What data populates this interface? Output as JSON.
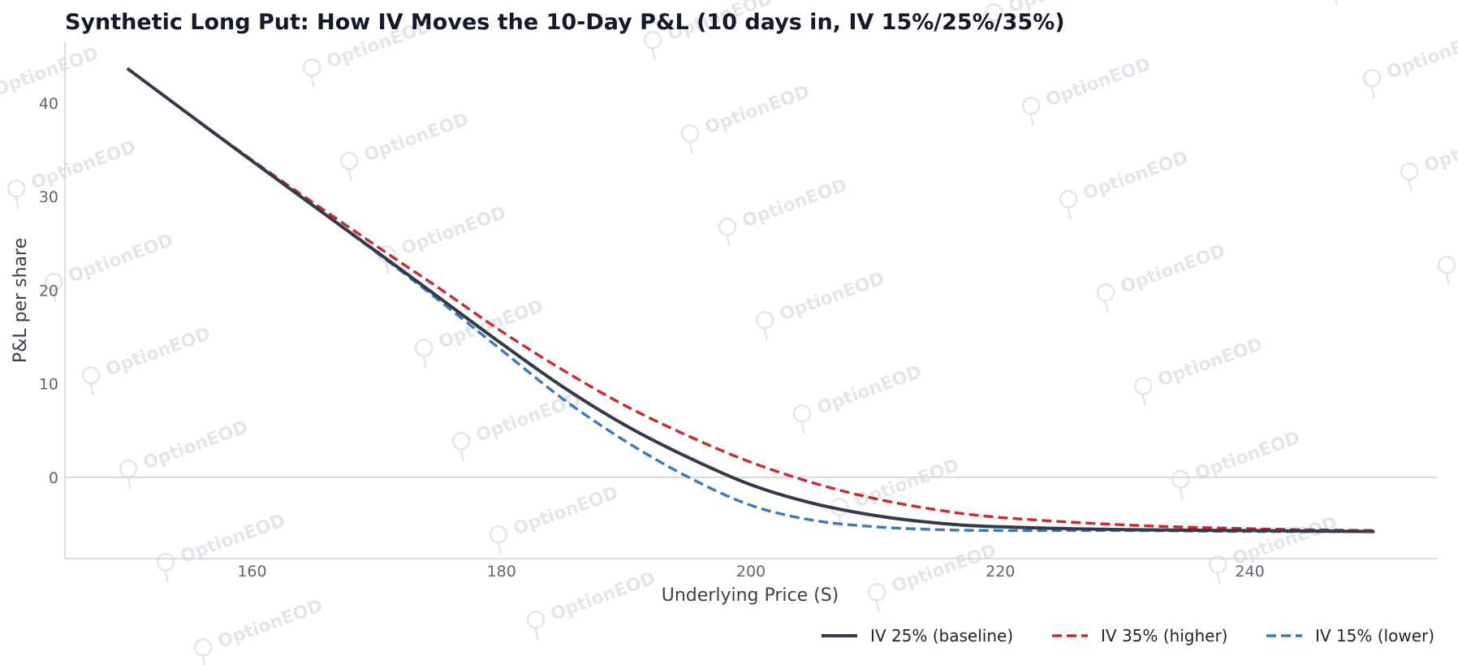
{
  "chart_data": {
    "type": "line",
    "title": "Synthetic Long Put: How IV Moves the 10-Day P&L (10 days in, IV 15%/25%/35%)",
    "xlabel": "Underlying Price (S)",
    "ylabel": "P&L per share",
    "xlim": [
      145,
      255
    ],
    "ylim": [
      -8.7,
      46.5
    ],
    "xticks": [
      160,
      180,
      200,
      220,
      240
    ],
    "yticks": [
      0,
      10,
      20,
      30,
      40
    ],
    "zero_line": true,
    "legend_position": "bottom-right",
    "watermark": "OptionEOD",
    "series": [
      {
        "name": "IV 25% (baseline)",
        "color": "#353a4a",
        "style": "solid",
        "x": [
          150,
          160,
          170,
          175,
          180,
          185,
          190,
          195,
          200,
          205,
          210,
          215,
          220,
          230,
          240,
          250
        ],
        "y": [
          43.7,
          33.8,
          24.1,
          19.2,
          14.3,
          9.6,
          5.5,
          2.1,
          -0.8,
          -2.8,
          -4.1,
          -4.9,
          -5.3,
          -5.6,
          -5.7,
          -5.8
        ]
      },
      {
        "name": "IV 35% (higher)",
        "color": "#cc2a2e",
        "style": "dashed",
        "x": [
          150,
          160,
          170,
          175,
          180,
          185,
          190,
          195,
          200,
          205,
          210,
          215,
          220,
          230,
          240,
          250
        ],
        "y": [
          43.7,
          33.9,
          24.7,
          20.2,
          15.6,
          11.4,
          7.6,
          4.4,
          1.6,
          -0.6,
          -2.3,
          -3.5,
          -4.3,
          -5.1,
          -5.5,
          -5.7
        ]
      },
      {
        "name": "IV 15% (lower)",
        "color": "#3b7ab8",
        "style": "dashed",
        "x": [
          150,
          160,
          170,
          175,
          180,
          185,
          190,
          195,
          200,
          205,
          210,
          215,
          220,
          230,
          240,
          250
        ],
        "y": [
          43.7,
          33.8,
          24.0,
          18.9,
          13.6,
          8.3,
          3.8,
          0.0,
          -3.0,
          -4.6,
          -5.3,
          -5.6,
          -5.7,
          -5.7,
          -5.8,
          -5.8
        ]
      }
    ]
  }
}
